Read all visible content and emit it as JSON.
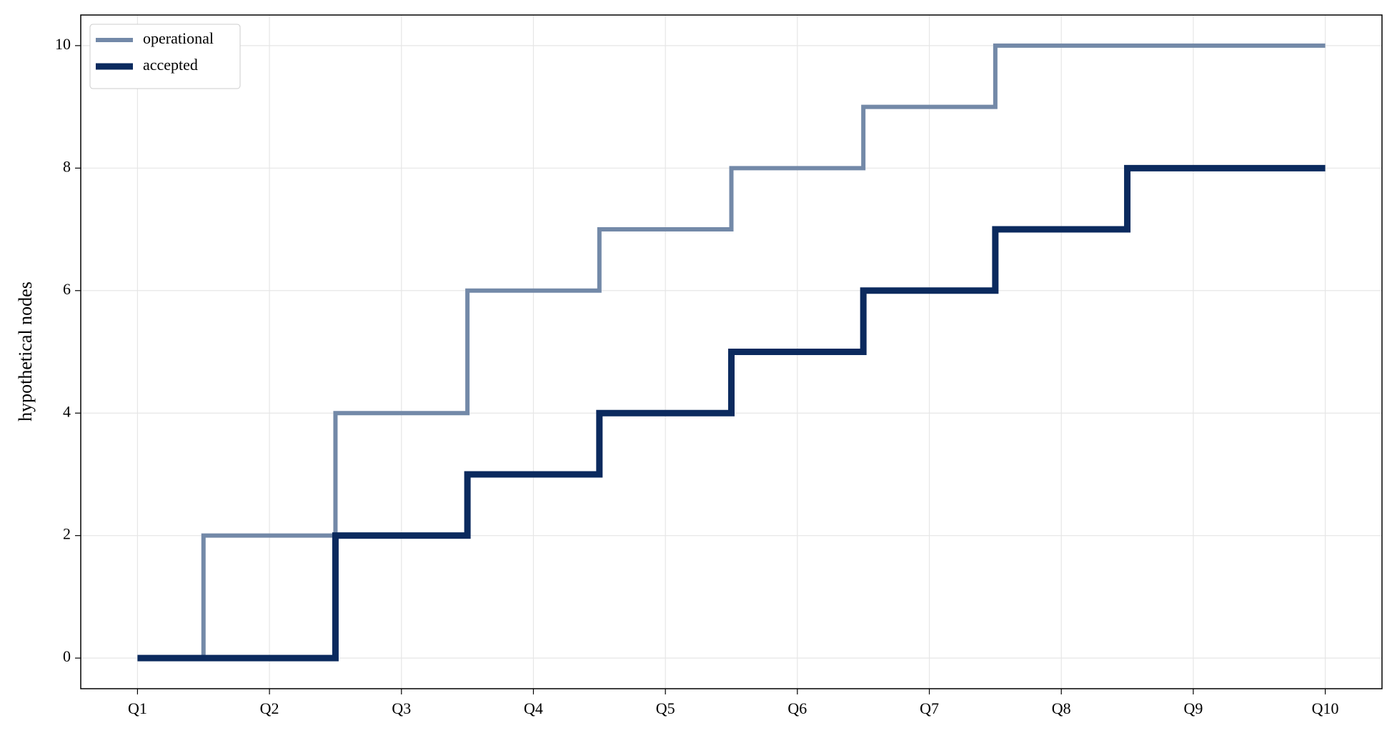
{
  "chart_data": {
    "type": "step",
    "step": "mid",
    "y_label": "hypothetical nodes",
    "categories": [
      "Q1",
      "Q2",
      "Q3",
      "Q4",
      "Q5",
      "Q6",
      "Q7",
      "Q8",
      "Q9",
      "Q10"
    ],
    "series": [
      {
        "name": "operational",
        "color": "#7389a8",
        "values": [
          0,
          2,
          4,
          6,
          7,
          8,
          9,
          10,
          10,
          10
        ]
      },
      {
        "name": "accepted",
        "color": "#0b2a5e",
        "values": [
          0,
          0,
          2,
          3,
          4,
          5,
          6,
          7,
          8,
          8
        ]
      }
    ],
    "ylim": [
      -0.5,
      10.5
    ],
    "yticks": [
      0,
      2,
      4,
      6,
      8,
      10
    ],
    "grid": true,
    "legend": "upper left"
  }
}
